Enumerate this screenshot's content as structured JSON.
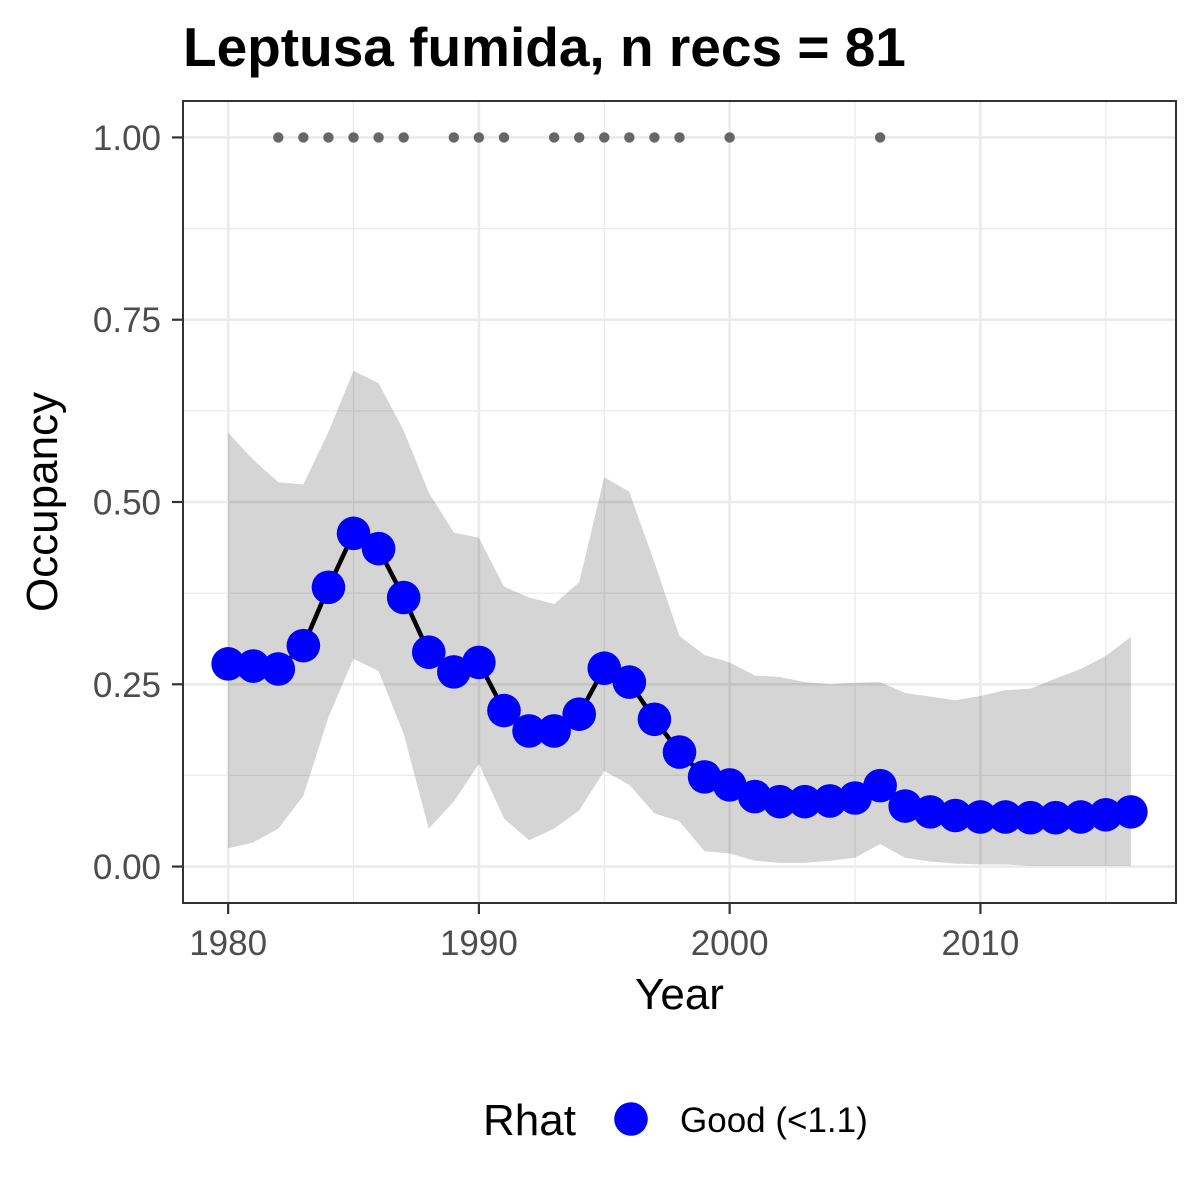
{
  "chart_data": {
    "type": "line",
    "title": "Leptusa fumida, n recs = 81",
    "xlabel": "Year",
    "ylabel": "Occupancy",
    "xlim": [
      1978.2,
      2017.8
    ],
    "ylim": [
      -0.05,
      1.05
    ],
    "xticks": [
      "1980",
      "1990",
      "2000",
      "2010"
    ],
    "yticks": [
      "0.00",
      "0.25",
      "0.50",
      "0.75",
      "1.00"
    ],
    "grid": true,
    "x": [
      1980,
      1981,
      1982,
      1983,
      1984,
      1985,
      1986,
      1987,
      1988,
      1989,
      1990,
      1991,
      1992,
      1993,
      1994,
      1995,
      1996,
      1997,
      1998,
      1999,
      2000,
      2001,
      2002,
      2003,
      2004,
      2005,
      2006,
      2007,
      2008,
      2009,
      2010,
      2011,
      2012,
      2013,
      2014,
      2015,
      2016
    ],
    "series": [
      {
        "values": [
          0.278,
          0.275,
          0.271,
          0.303,
          0.383,
          0.457,
          0.436,
          0.369,
          0.294,
          0.267,
          0.28,
          0.214,
          0.186,
          0.186,
          0.209,
          0.272,
          0.253,
          0.202,
          0.157,
          0.123,
          0.112,
          0.096,
          0.089,
          0.089,
          0.09,
          0.094,
          0.111,
          0.083,
          0.075,
          0.07,
          0.068,
          0.068,
          0.067,
          0.067,
          0.068,
          0.071,
          0.075
        ],
        "upper": [
          0.595,
          0.558,
          0.527,
          0.524,
          0.596,
          0.68,
          0.663,
          0.598,
          0.513,
          0.458,
          0.451,
          0.384,
          0.369,
          0.36,
          0.39,
          0.534,
          0.514,
          0.417,
          0.316,
          0.29,
          0.28,
          0.262,
          0.26,
          0.253,
          0.25,
          0.252,
          0.253,
          0.238,
          0.233,
          0.228,
          0.234,
          0.242,
          0.244,
          0.258,
          0.271,
          0.289,
          0.315
        ],
        "lower": [
          0.025,
          0.033,
          0.052,
          0.097,
          0.205,
          0.285,
          0.268,
          0.182,
          0.052,
          0.089,
          0.141,
          0.066,
          0.036,
          0.052,
          0.077,
          0.131,
          0.112,
          0.073,
          0.062,
          0.021,
          0.018,
          0.008,
          0.005,
          0.005,
          0.008,
          0.012,
          0.031,
          0.012,
          0.007,
          0.004,
          0.003,
          0.003,
          0.001,
          0.001,
          0.001,
          0.001,
          0.001
        ]
      }
    ],
    "records": {
      "x": [
        1982,
        1983,
        1984,
        1985,
        1986,
        1987,
        1989,
        1990,
        1991,
        1993,
        1994,
        1995,
        1996,
        1997,
        1998,
        2000,
        2006
      ],
      "y": 1.0
    },
    "legend": {
      "position": "bottom",
      "title": "Rhat",
      "entries": [
        {
          "label": "Good (<1.1)",
          "color": "#0000ff"
        }
      ]
    },
    "colors": {
      "point": "#0000ff",
      "line": "#000000",
      "band": "#d5d5d5",
      "record": "#666666",
      "grid": "#ebebeb",
      "axis": "#333333",
      "tick_text": "#4d4d4d"
    }
  }
}
